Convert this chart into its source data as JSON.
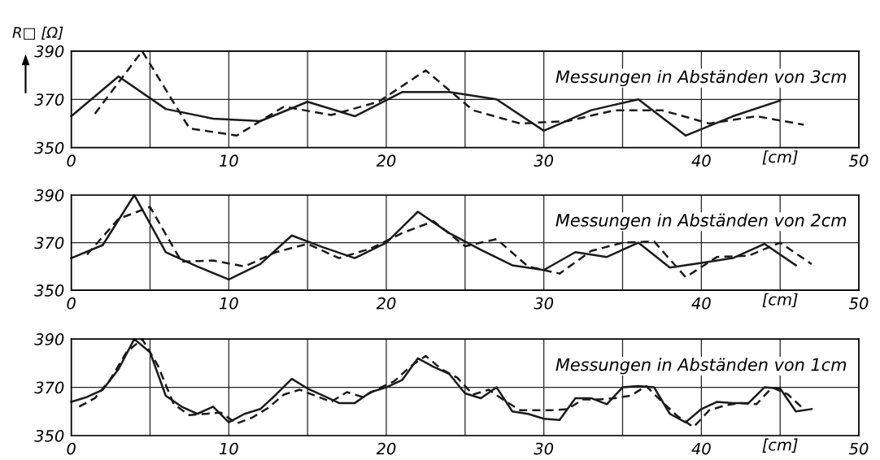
{
  "chart_data": [
    {
      "type": "line",
      "ylabel": "R□ [Ω]",
      "xlabel": "[cm]",
      "annotations": [
        "Messungen in Abständen von 3cm"
      ],
      "xlim": [
        0,
        50
      ],
      "ylim": [
        350,
        390
      ],
      "xticks": [
        0,
        {
          "value": 5,
          "label": null
        },
        10,
        {
          "value": 15,
          "label": null
        },
        20,
        {
          "value": 25,
          "label": null
        },
        30,
        {
          "value": 35,
          "label": null
        },
        40,
        {
          "value": 45,
          "label": null
        },
        50
      ],
      "yticks": [
        350,
        370,
        390
      ],
      "grid": true,
      "marker": "none",
      "series": [
        {
          "color": "#1a1a1a",
          "line_style": "solid",
          "x": [
            0,
            3,
            6,
            9,
            12,
            15,
            18,
            21,
            24,
            27,
            30,
            33,
            36,
            39,
            42,
            45
          ],
          "values": [
            363,
            379.5,
            366,
            362,
            361,
            369,
            363,
            373,
            373,
            370,
            357,
            365.5,
            370,
            355,
            363,
            369.5
          ]
        },
        {
          "color": "#1a1a1a",
          "line_style": "dashed",
          "x": [
            1.5,
            4.5,
            7.5,
            10.5,
            13.5,
            16.5,
            19.5,
            22.5,
            25.5,
            28.5,
            31.5,
            34.5,
            37.5,
            40.5,
            43.5,
            46.5
          ],
          "values": [
            364,
            390,
            358,
            355,
            367,
            363.5,
            369,
            382,
            365.5,
            360,
            361,
            365.5,
            365.5,
            360,
            363,
            359.5
          ]
        }
      ]
    },
    {
      "type": "line",
      "xlabel": "[cm]",
      "annotations": [
        "Messungen in Abständen von 2cm"
      ],
      "xlim": [
        0,
        50
      ],
      "ylim": [
        350,
        390
      ],
      "xticks": [
        0,
        {
          "value": 5,
          "label": null
        },
        10,
        {
          "value": 15,
          "label": null
        },
        20,
        {
          "value": 25,
          "label": null
        },
        30,
        {
          "value": 35,
          "label": null
        },
        40,
        {
          "value": 45,
          "label": null
        },
        50
      ],
      "yticks": [
        350,
        370,
        390
      ],
      "grid": true,
      "marker": "none",
      "series": [
        {
          "color": "#1a1a1a",
          "line_style": "solid",
          "x": [
            0,
            2,
            4,
            6,
            8,
            10,
            12,
            14,
            16,
            18,
            20,
            22,
            24,
            26,
            28,
            30,
            32,
            34,
            36,
            38,
            40,
            42,
            44,
            46
          ],
          "values": [
            363.5,
            369,
            390,
            366,
            360,
            354.5,
            361,
            373,
            368,
            363.5,
            370,
            383,
            374,
            367,
            360.5,
            358.5,
            366,
            364,
            370,
            359.5,
            361.5,
            363.5,
            369.5,
            360.5
          ]
        },
        {
          "color": "#1a1a1a",
          "line_style": "dashed",
          "x": [
            1,
            3,
            5,
            7,
            9,
            11,
            13,
            15,
            17,
            19,
            21,
            23,
            25,
            27,
            29,
            31,
            33,
            35,
            37,
            39,
            41,
            43,
            45,
            47
          ],
          "values": [
            365,
            380,
            385,
            362,
            362.5,
            360,
            366,
            369.5,
            363.5,
            367.5,
            374,
            379,
            368.5,
            371.5,
            360,
            357,
            366.5,
            370,
            370.5,
            355.5,
            364,
            364.5,
            370,
            361
          ]
        }
      ]
    },
    {
      "type": "line",
      "xlabel": "[cm]",
      "annotations": [
        "Messungen in Abständen von 1cm"
      ],
      "xlim": [
        0,
        50
      ],
      "ylim": [
        350,
        390
      ],
      "xticks": [
        0,
        {
          "value": 5,
          "label": null
        },
        10,
        {
          "value": 15,
          "label": null
        },
        20,
        {
          "value": 25,
          "label": null
        },
        30,
        {
          "value": 35,
          "label": null
        },
        40,
        {
          "value": 45,
          "label": null
        },
        50
      ],
      "yticks": [
        350,
        370,
        390
      ],
      "grid": true,
      "marker": "none",
      "series": [
        {
          "color": "#1a1a1a",
          "line_style": "solid",
          "x": [
            0,
            1,
            2,
            3,
            4,
            5,
            6,
            7,
            8,
            9,
            10,
            11,
            12,
            13,
            14,
            15,
            16,
            17,
            18,
            19,
            20,
            21,
            22,
            23,
            24,
            25,
            26,
            27,
            28,
            29,
            30,
            31,
            32,
            33,
            34,
            35,
            36,
            37,
            38,
            39,
            40,
            41,
            42,
            43,
            44,
            45,
            46,
            47
          ],
          "values": [
            364,
            366,
            369,
            377.5,
            390,
            384.5,
            366.5,
            362,
            359,
            362,
            355.5,
            359,
            361,
            367,
            373.5,
            369.5,
            366.5,
            363.5,
            363.5,
            368,
            370,
            373,
            382,
            378.5,
            375.5,
            367.5,
            365.5,
            370,
            360,
            359,
            357,
            356.5,
            365.5,
            365.5,
            363,
            370,
            370.5,
            370,
            359,
            355.5,
            361,
            364,
            363.5,
            363.5,
            370,
            369.5,
            360,
            361
          ]
        },
        {
          "color": "#1a1a1a",
          "line_style": "dashed",
          "x": [
            0.5,
            1.5,
            2.5,
            3.5,
            4.5,
            5.5,
            6.5,
            7.5,
            8.5,
            9.5,
            10.5,
            11.5,
            12.5,
            13.5,
            14.5,
            15.5,
            16.5,
            17.5,
            18.5,
            19.5,
            20.5,
            21.5,
            22.5,
            23.5,
            24.5,
            25.5,
            26.5,
            27.5,
            28.5,
            29.5,
            30.5,
            31.5,
            32.5,
            33.5,
            34.5,
            35.5,
            36.5,
            37.5,
            38.5,
            39.5,
            40.5,
            41.5,
            42.5,
            43.5,
            44.5,
            45.5,
            46.5
          ],
          "values": [
            362,
            365.5,
            373.5,
            384.5,
            390,
            379,
            363,
            358.5,
            359,
            359.5,
            355,
            357.5,
            361.5,
            367,
            369,
            366.5,
            364,
            368,
            366,
            369.5,
            372.5,
            378.5,
            383,
            377.5,
            374,
            367,
            369,
            364.5,
            360.5,
            360.5,
            360.5,
            361,
            365,
            365,
            365.5,
            366.5,
            370.5,
            364,
            358,
            353.5,
            360.5,
            362.5,
            363.5,
            363,
            370,
            367,
            361
          ]
        }
      ]
    }
  ]
}
